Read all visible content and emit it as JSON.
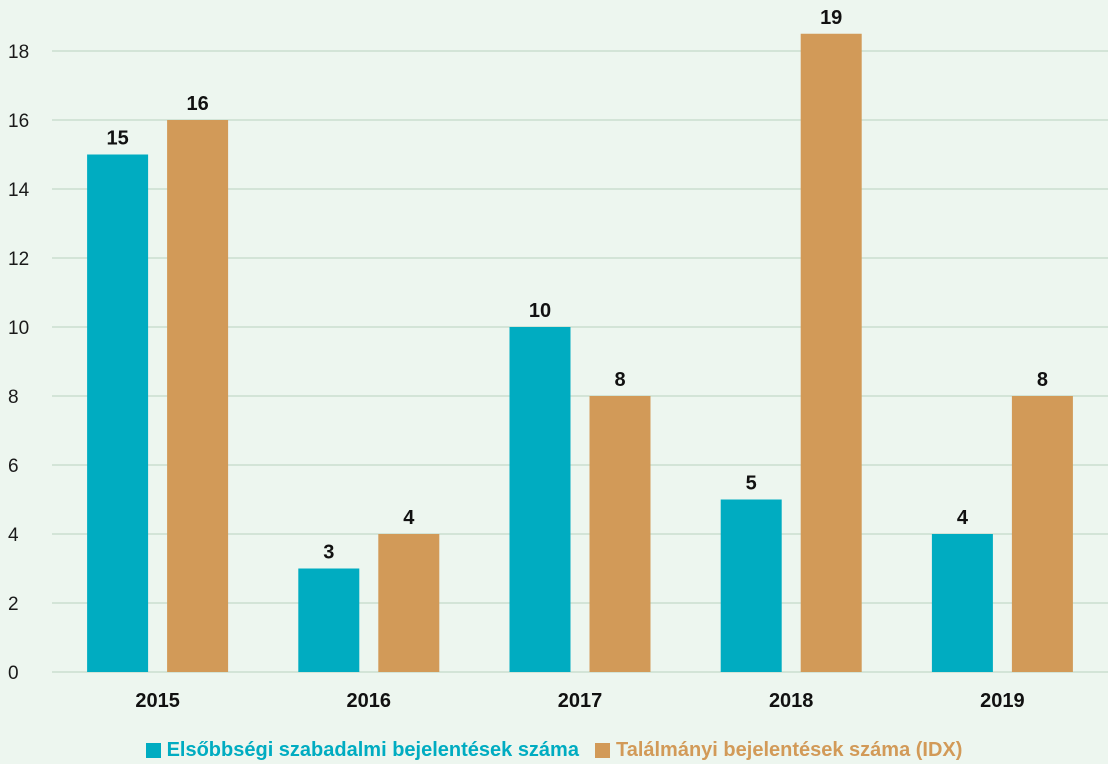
{
  "chart_data": {
    "type": "bar",
    "categories": [
      "2015",
      "2016",
      "2017",
      "2018",
      "2019"
    ],
    "series": [
      {
        "name": "Elsőbbségi szabadalmi bejelentések száma",
        "values": [
          15,
          3,
          10,
          5,
          4
        ],
        "labels": [
          "15",
          "3",
          "10",
          "5",
          "4"
        ],
        "color": "#00acc1"
      },
      {
        "name": "Találmányi bejelentések száma (IDX)",
        "values": [
          16,
          4,
          8,
          18.5,
          8
        ],
        "labels": [
          "16",
          "4",
          "8",
          "19",
          "8"
        ],
        "color": "#d29a58"
      }
    ],
    "ylim": [
      0,
      19
    ],
    "yticks": [
      "0",
      "2",
      "4",
      "6",
      "8",
      "10",
      "12",
      "14",
      "16",
      "18"
    ],
    "grid": true,
    "legend_position": "bottom-center",
    "colors": {
      "background": "#edf6ef",
      "gridline": "#b9d2bf"
    }
  }
}
